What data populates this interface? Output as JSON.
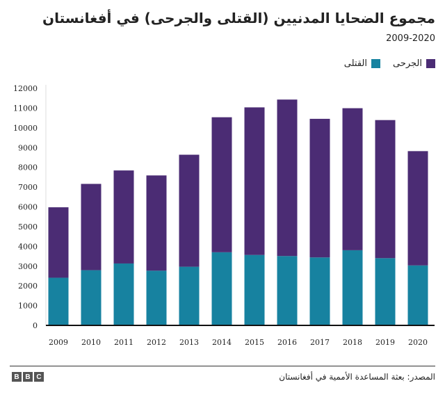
{
  "chart_data": {
    "type": "bar",
    "stacked": true,
    "title": "مجموع الضحايا المدنيين (القتلى والجرحى) في أفغانستان",
    "subtitle": "2009-2020",
    "categories": [
      "2009",
      "2010",
      "2011",
      "2012",
      "2013",
      "2014",
      "2015",
      "2016",
      "2017",
      "2018",
      "2019",
      "2020"
    ],
    "series": [
      {
        "name": "القتلى",
        "color": "#1782a0",
        "values": [
          2412,
          2794,
          3133,
          2769,
          2969,
          3701,
          3565,
          3510,
          3440,
          3804,
          3403,
          3035
        ]
      },
      {
        "name": "الجرحى",
        "color": "#4b2c74",
        "values": [
          3566,
          4368,
          4709,
          4821,
          5669,
          6834,
          7470,
          7920,
          7015,
          7189,
          6989,
          5785
        ]
      }
    ],
    "ylim": [
      0,
      12000
    ],
    "yticks": [
      0,
      1000,
      2000,
      3000,
      4000,
      5000,
      6000,
      7000,
      8000,
      9000,
      10000,
      11000,
      12000
    ],
    "grid": false,
    "legend_placement": "top-right",
    "xlabel": "",
    "ylabel": ""
  },
  "footer": {
    "source": "المصدر: بعثة المساعدة الأممية في أفغانستان",
    "logo": [
      "B",
      "B",
      "C"
    ]
  }
}
